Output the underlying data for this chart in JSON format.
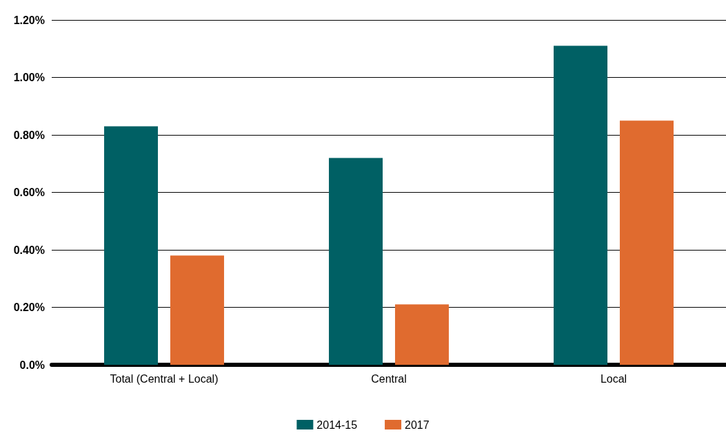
{
  "chart_data": {
    "type": "bar",
    "categories": [
      "Total (Central + Local)",
      "Central",
      "Local"
    ],
    "series": [
      {
        "name": "2014-15",
        "color": "#006064",
        "values": [
          0.83,
          0.72,
          1.11
        ]
      },
      {
        "name": "2017",
        "color": "#e06b2f",
        "values": [
          0.38,
          0.21,
          0.85
        ]
      }
    ],
    "ylim": [
      0,
      1.2
    ],
    "yticks": [
      {
        "value": 0,
        "label": "0.0%"
      },
      {
        "value": 0.2,
        "label": "0.20%"
      },
      {
        "value": 0.4,
        "label": "0.40%"
      },
      {
        "value": 0.6,
        "label": "0.60%"
      },
      {
        "value": 0.8,
        "label": "0.80%"
      },
      {
        "value": 1.0,
        "label": "1.00%"
      },
      {
        "value": 1.2,
        "label": "1.20%"
      }
    ],
    "grid": "y",
    "legend": "bottom"
  }
}
